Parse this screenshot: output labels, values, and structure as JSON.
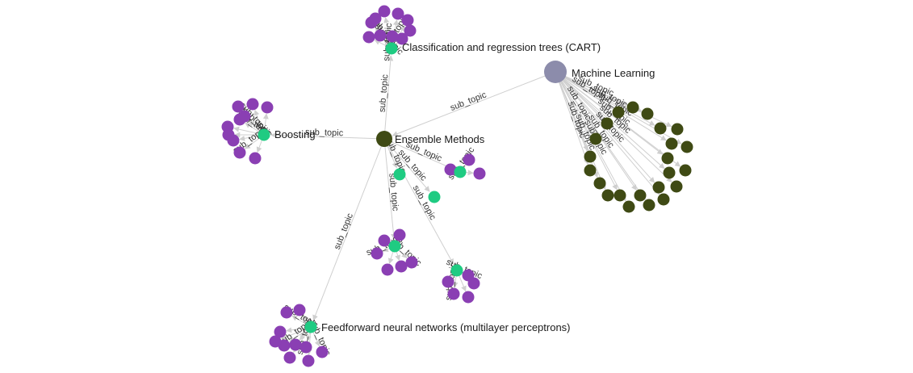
{
  "graph": {
    "edge_label": "sub_topic",
    "colors": {
      "root_node": "#8c8cab",
      "topic_node": "#3f4a14",
      "subtopic_node": "#1fcb82",
      "leaf_node": "#8a3fb3",
      "edge": "#cfcfcf",
      "label_text": "#1a1a1a"
    },
    "nodes": {
      "root": {
        "label": "Machine Learning"
      },
      "ensemble": {
        "label": "Ensemble Methods"
      },
      "cart": {
        "label": "Classification and regression trees (CART)"
      },
      "boosting": {
        "label": "Boosting"
      },
      "feedforward": {
        "label": "Feedforward neural networks (multilayer perceptrons)"
      }
    }
  }
}
